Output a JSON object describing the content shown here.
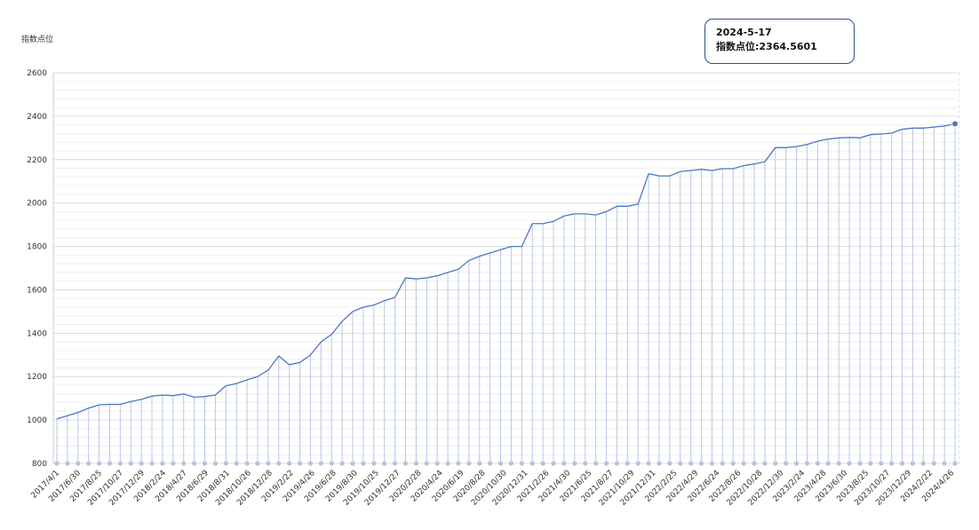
{
  "chart_data": {
    "type": "line",
    "ylabel": "指数点位",
    "ylim": [
      800,
      2600
    ],
    "yticks": [
      800,
      1000,
      1200,
      1400,
      1600,
      1800,
      2000,
      2200,
      2400,
      2600
    ],
    "x_tick_labels": [
      "2017/4/1",
      "2017/6/30",
      "2017/8/25",
      "2017/10/27",
      "2017/12/29",
      "2018/2/24",
      "2018/4/27",
      "2018/6/29",
      "2018/8/31",
      "2018/10/26",
      "2018/12/28",
      "2019/2/22",
      "2019/4/26",
      "2019/6/28",
      "2019/8/30",
      "2019/10/25",
      "2019/12/27",
      "2020/2/28",
      "2020/4/24",
      "2020/6/19",
      "2020/8/28",
      "2020/10/30",
      "2020/12/31",
      "2021/2/26",
      "2021/4/30",
      "2021/6/25",
      "2021/8/27",
      "2021/10/29",
      "2021/12/31",
      "2022/2/25",
      "2022/4/29",
      "2022/6/24",
      "2022/8/26",
      "2022/10/28",
      "2022/12/30",
      "2023/2/24",
      "2023/4/28",
      "2023/6/30",
      "2023/8/25",
      "2023/10/27",
      "2023/12/29",
      "2024/2/22",
      "2024/4/26"
    ],
    "series": [
      {
        "color": "#4a78c2",
        "values": [
          1005,
          1020,
          1035,
          1055,
          1070,
          1072,
          1072,
          1085,
          1095,
          1110,
          1115,
          1112,
          1120,
          1105,
          1108,
          1115,
          1158,
          1168,
          1185,
          1200,
          1230,
          1295,
          1255,
          1265,
          1300,
          1360,
          1395,
          1455,
          1500,
          1520,
          1530,
          1550,
          1565,
          1655,
          1650,
          1655,
          1665,
          1680,
          1695,
          1735,
          1755,
          1770,
          1785,
          1800,
          1800,
          1905,
          1905,
          1915,
          1940,
          1950,
          1950,
          1945,
          1960,
          1985,
          1985,
          1995,
          2135,
          2125,
          2125,
          2145,
          2150,
          2155,
          2150,
          2158,
          2158,
          2172,
          2180,
          2190,
          2255,
          2255,
          2260,
          2270,
          2285,
          2295,
          2300,
          2302,
          2300,
          2315,
          2318,
          2322,
          2340,
          2345,
          2345,
          2350,
          2355,
          2364.5601
        ]
      }
    ],
    "tooltip": {
      "date": "2024-5-17",
      "label": "指数点位:2364.5601"
    },
    "grid": true
  }
}
